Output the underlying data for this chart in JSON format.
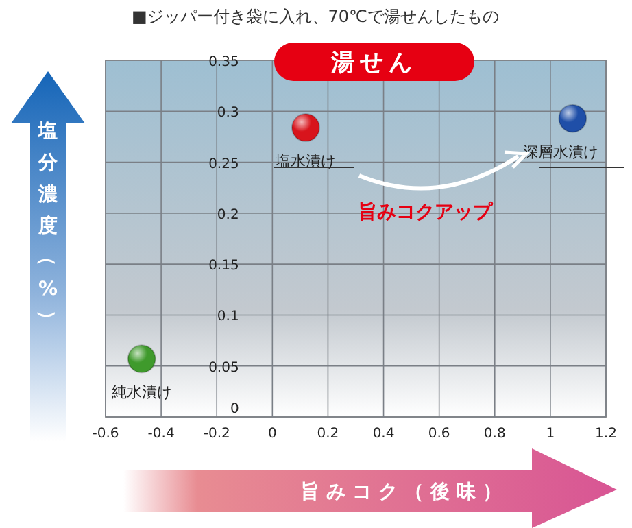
{
  "chart_data": {
    "type": "scatter",
    "title": "■ジッパー付き袋に入れ、70℃で湯せんしたもの",
    "subtitle": "湯せん",
    "xlabel": "旨みコク（後味）",
    "ylabel": "塩分濃度（%）",
    "annotations": [
      "旨みコクアップ"
    ],
    "series": [
      {
        "name": "純水漬け",
        "color": "#3f9a2c",
        "x": [
          -0.47
        ],
        "values": [
          0.057
        ]
      },
      {
        "name": "塩水漬け",
        "color": "#d8141c",
        "x": [
          0.12
        ],
        "values": [
          0.284
        ]
      },
      {
        "name": "深層水漬け",
        "color": "#1f4fa8",
        "x": [
          1.08
        ],
        "values": [
          0.293
        ]
      }
    ],
    "xlim": [
      -0.6,
      1.2
    ],
    "xticks": [
      -0.6,
      -0.4,
      -0.2,
      0,
      0.2,
      0.4,
      0.6,
      0.8,
      1,
      1.2
    ],
    "ylim": [
      0,
      0.35
    ],
    "yticks": [
      0,
      0.05,
      0.1,
      0.15,
      0.2,
      0.25,
      0.3,
      0.35
    ],
    "grid": true,
    "marker": "circle"
  }
}
